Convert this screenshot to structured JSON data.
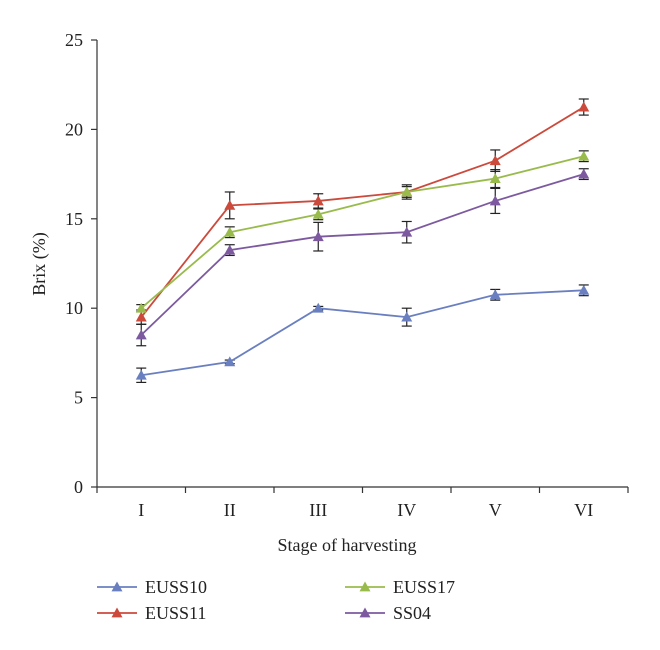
{
  "chart_data": {
    "type": "line",
    "title": "",
    "xlabel": "Stage of harvesting",
    "ylabel": "Brix (%)",
    "categories": [
      "I",
      "II",
      "III",
      "IV",
      "V",
      "VI"
    ],
    "ylim": [
      0,
      25
    ],
    "yticks": [
      0,
      5,
      10,
      15,
      20,
      25
    ],
    "grid": false,
    "legend_position": "bottom",
    "series": [
      {
        "name": "EUSS10",
        "color": "#6a7fc0",
        "values": [
          6.25,
          7.0,
          10.0,
          9.5,
          10.75,
          11.0
        ],
        "errors": [
          0.4,
          0.1,
          0.1,
          0.5,
          0.3,
          0.3
        ]
      },
      {
        "name": "EUSS11",
        "color": "#cc4a3c",
        "values": [
          9.5,
          15.75,
          16.0,
          16.5,
          18.25,
          21.25
        ],
        "errors": [
          0.4,
          0.75,
          0.4,
          0.4,
          0.6,
          0.45
        ]
      },
      {
        "name": "EUSS17",
        "color": "#99bb4c",
        "values": [
          10.0,
          14.25,
          15.25,
          16.5,
          17.25,
          18.5
        ],
        "errors": [
          0.2,
          0.3,
          0.3,
          0.3,
          0.5,
          0.3
        ]
      },
      {
        "name": "SS04",
        "color": "#7d5aa0",
        "values": [
          8.5,
          13.25,
          14.0,
          14.25,
          16.0,
          17.5
        ],
        "errors": [
          0.6,
          0.3,
          0.8,
          0.6,
          0.7,
          0.3
        ]
      }
    ]
  }
}
